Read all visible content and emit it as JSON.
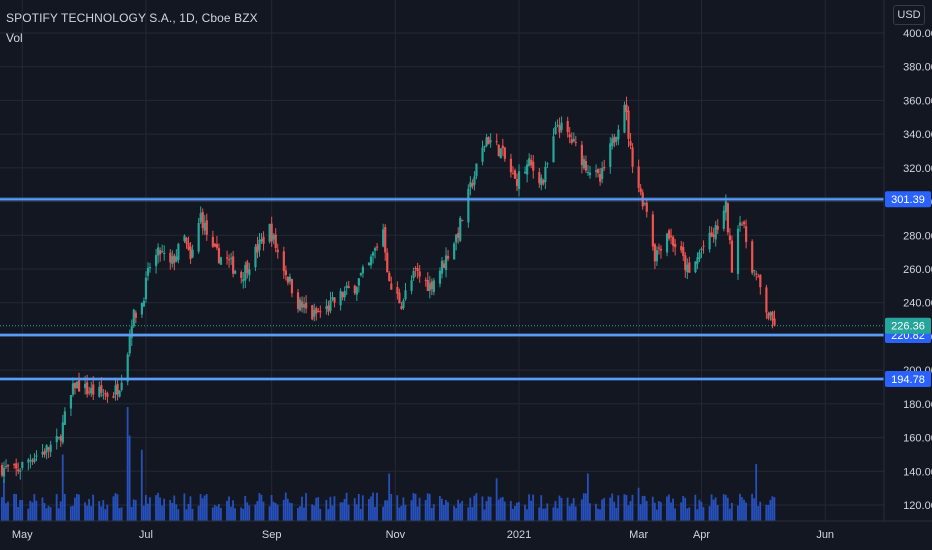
{
  "header": {
    "symbol_title": "SPOTIFY TECHNOLOGY S.A., 1D, Cboe BZX",
    "volume_label": "Vol",
    "currency": "USD"
  },
  "chart_data": {
    "type": "candlestick",
    "ylim": [
      113,
      406
    ],
    "y_ticks": [
      120,
      140,
      160,
      180,
      200,
      220,
      240,
      260,
      280,
      300,
      320,
      340,
      360,
      380,
      400
    ],
    "y_tick_labels": [
      "120.00",
      "140.00",
      "160.00",
      "180.00",
      "200.00",
      "220.00",
      "240.00",
      "260.00",
      "280.00",
      "300.00",
      "320.00",
      "340.00",
      "360.00",
      "380.00",
      "400.00"
    ],
    "x_ticks": [
      {
        "date": "2020-05-01",
        "label": "May"
      },
      {
        "date": "2020-07-01",
        "label": "Jul"
      },
      {
        "date": "2020-09-01",
        "label": "Sep"
      },
      {
        "date": "2020-11-01",
        "label": "Nov"
      },
      {
        "date": "2021-01-01",
        "label": "2021"
      },
      {
        "date": "2021-03-01",
        "label": "Mar"
      },
      {
        "date": "2021-04-01",
        "label": "Apr"
      },
      {
        "date": "2021-06-01",
        "label": "Jun"
      }
    ],
    "x_range": [
      "2020-04-21",
      "2021-06-30"
    ],
    "horizontal_levels": [
      {
        "value": 301.39,
        "label": "301.39"
      },
      {
        "value": 220.82,
        "label": "220.82"
      },
      {
        "value": 194.78,
        "label": "194.78"
      }
    ],
    "last_price": {
      "value": 226.36,
      "label": "226.36"
    },
    "colors": {
      "up": "#26a69a",
      "down": "#ef5350",
      "volume": "#2a5bd7",
      "level_line": "#2962ff",
      "level_highlight": "#5b9cf6",
      "last_price_tag": "#26a69a",
      "grid": "#242833",
      "background": "#131722"
    },
    "grid": true,
    "close_path": [
      [
        "2020-04-21",
        142
      ],
      [
        "2020-04-28",
        140
      ],
      [
        "2020-05-05",
        148
      ],
      [
        "2020-05-12",
        152
      ],
      [
        "2020-05-19",
        158
      ],
      [
        "2020-05-22",
        172
      ],
      [
        "2020-05-27",
        192
      ],
      [
        "2020-06-02",
        188
      ],
      [
        "2020-06-09",
        186
      ],
      [
        "2020-06-15",
        186
      ],
      [
        "2020-06-18",
        192
      ],
      [
        "2020-06-22",
        212
      ],
      [
        "2020-06-24",
        230
      ],
      [
        "2020-06-29",
        240
      ],
      [
        "2020-07-03",
        262
      ],
      [
        "2020-07-08",
        270
      ],
      [
        "2020-07-13",
        262
      ],
      [
        "2020-07-20",
        278
      ],
      [
        "2020-07-23",
        264
      ],
      [
        "2020-07-28",
        292
      ],
      [
        "2020-08-03",
        270
      ],
      [
        "2020-08-10",
        265
      ],
      [
        "2020-08-17",
        256
      ],
      [
        "2020-08-24",
        270
      ],
      [
        "2020-08-31",
        284
      ],
      [
        "2020-09-04",
        270
      ],
      [
        "2020-09-08",
        258
      ],
      [
        "2020-09-14",
        240
      ],
      [
        "2020-09-21",
        232
      ],
      [
        "2020-09-28",
        236
      ],
      [
        "2020-10-05",
        244
      ],
      [
        "2020-10-12",
        250
      ],
      [
        "2020-10-19",
        262
      ],
      [
        "2020-10-26",
        284
      ],
      [
        "2020-10-29",
        250
      ],
      [
        "2020-11-04",
        240
      ],
      [
        "2020-11-11",
        258
      ],
      [
        "2020-11-18",
        250
      ],
      [
        "2020-11-25",
        264
      ],
      [
        "2020-12-02",
        282
      ],
      [
        "2020-12-09",
        312
      ],
      [
        "2020-12-16",
        338
      ],
      [
        "2020-12-23",
        330
      ],
      [
        "2020-12-30",
        312
      ],
      [
        "2021-01-06",
        322
      ],
      [
        "2021-01-13",
        312
      ],
      [
        "2021-01-20",
        346
      ],
      [
        "2021-01-27",
        336
      ],
      [
        "2021-02-03",
        322
      ],
      [
        "2021-02-10",
        312
      ],
      [
        "2021-02-17",
        338
      ],
      [
        "2021-02-22",
        360
      ],
      [
        "2021-02-25",
        330
      ],
      [
        "2021-03-02",
        304
      ],
      [
        "2021-03-05",
        296
      ],
      [
        "2021-03-09",
        268
      ],
      [
        "2021-03-15",
        282
      ],
      [
        "2021-03-22",
        268
      ],
      [
        "2021-03-26",
        256
      ],
      [
        "2021-04-01",
        272
      ],
      [
        "2021-04-07",
        280
      ],
      [
        "2021-04-13",
        296
      ],
      [
        "2021-04-16",
        262
      ],
      [
        "2021-04-20",
        292
      ],
      [
        "2021-04-26",
        262
      ],
      [
        "2021-04-30",
        248
      ],
      [
        "2021-05-04",
        232
      ],
      [
        "2021-05-07",
        226.36
      ]
    ],
    "volume_spikes": [
      {
        "date": "2020-04-22",
        "level": 0.45
      },
      {
        "date": "2020-05-21",
        "level": 0.7
      },
      {
        "date": "2020-06-22",
        "level": 1.2
      },
      {
        "date": "2020-06-23",
        "level": 0.9
      },
      {
        "date": "2020-06-29",
        "level": 0.75
      },
      {
        "date": "2020-09-08",
        "level": 0.3
      },
      {
        "date": "2020-10-29",
        "level": 0.5
      },
      {
        "date": "2020-12-21",
        "level": 0.45
      },
      {
        "date": "2021-02-04",
        "level": 0.5
      },
      {
        "date": "2021-03-01",
        "level": 0.35
      },
      {
        "date": "2021-04-28",
        "level": 0.6
      }
    ]
  }
}
